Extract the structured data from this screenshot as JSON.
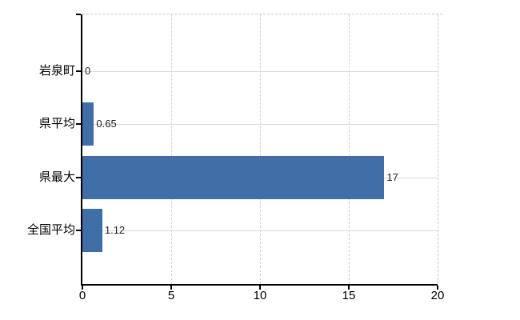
{
  "chart_data": {
    "type": "bar",
    "orientation": "horizontal",
    "title": "",
    "xlabel": "",
    "ylabel": "",
    "categories": [
      "岩泉町",
      "県平均",
      "県最大",
      "全国平均"
    ],
    "values": [
      0,
      0.65,
      17,
      1.12
    ],
    "value_labels": [
      "0",
      "0.65",
      "17",
      "1.12"
    ],
    "xlim": [
      0,
      20
    ],
    "x_tick_values": [
      0,
      5,
      10,
      15,
      20
    ],
    "x_tick_labels": [
      "0",
      "5",
      "10",
      "15",
      "20"
    ],
    "legend": "none",
    "grid": "on",
    "colors": {
      "bar": "#406fa8",
      "gridline_horizontal": "#d6dbd6",
      "gridline_vertical": "#d5cdd1",
      "plot_top_border": "#ccc4c8",
      "axis": "#000000",
      "category_label": "#000000",
      "tick_label": "#000000",
      "value_label": "#222222",
      "background": "#ffffff"
    }
  }
}
